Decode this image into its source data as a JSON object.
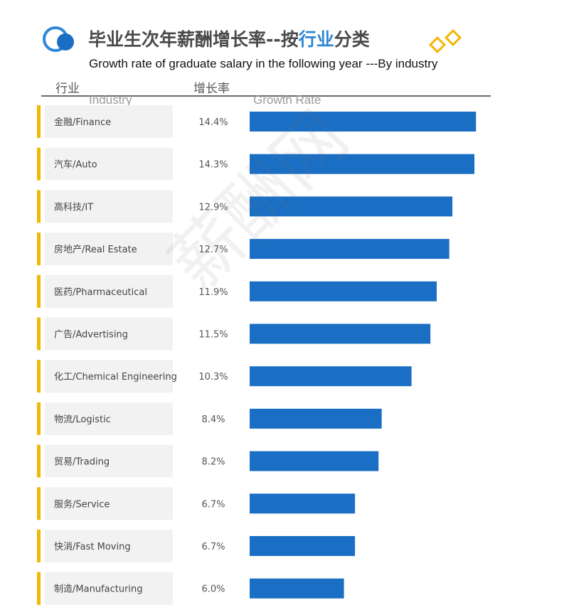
{
  "header": {
    "title_zh_prefix": "毕业生次年薪酬增长率--按",
    "title_zh_highlight": "行业",
    "title_zh_suffix": "分类",
    "title_en": "Growth rate of graduate salary in the following year ---By industry",
    "col_industry_zh": "行业",
    "col_industry_en": "Industry",
    "col_rate_zh": "增长率",
    "col_rate_en": "Growth Rate"
  },
  "watermark": "薪酬网",
  "colors": {
    "bar": "#1a6fc4",
    "accent": "#f2b705",
    "label_bg": "#f2f2f2",
    "title_highlight": "#2d86d6"
  },
  "chart_data": {
    "type": "bar",
    "orientation": "horizontal",
    "categories": [
      "金融/Finance",
      "汽车/Auto",
      "高科技/IT",
      "房地产/Real Estate",
      "医药/Pharmaceutical",
      "广告/Advertising",
      "化工/Chemical Engineering",
      "物流/Logistic",
      "贸易/Trading",
      "服务/Service",
      "快消/Fast Moving",
      "制造/Manufacturing"
    ],
    "values": [
      14.4,
      14.3,
      12.9,
      12.7,
      11.9,
      11.5,
      10.3,
      8.4,
      8.2,
      6.7,
      6.7,
      6.0
    ],
    "value_labels": [
      "14.4%",
      "14.3%",
      "12.9%",
      "12.7%",
      "11.9%",
      "11.5%",
      "10.3%",
      "8.4%",
      "8.2%",
      "6.7%",
      "6.7%",
      "6.0%"
    ],
    "unit": "%",
    "title": "毕业生次年薪酬增长率--按行业分类",
    "xlabel": "Growth Rate",
    "ylabel": "Industry",
    "grid": false
  }
}
